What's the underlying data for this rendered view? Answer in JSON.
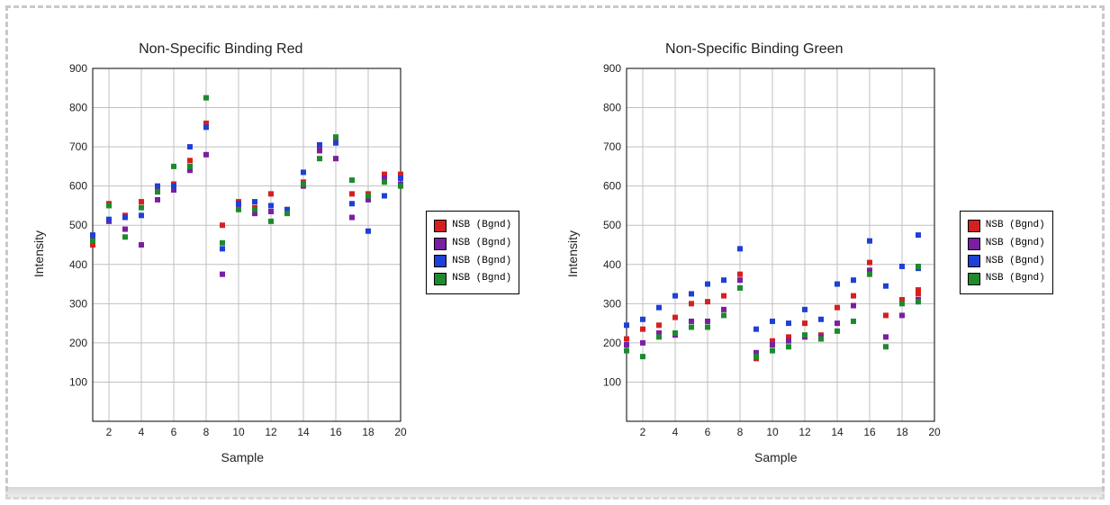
{
  "layout": {
    "background_color": "#ffffff",
    "border_style": "3px dashed #c8c8c8"
  },
  "charts": [
    {
      "id": "chart_red",
      "type": "scatter",
      "title": "Non-Specific Binding Red",
      "title_fontsize": 16,
      "xlabel": "Sample",
      "ylabel": "Intensity",
      "label_fontsize": 14,
      "xlim": [
        1,
        20
      ],
      "ylim": [
        0,
        900
      ],
      "xtick_step": 2,
      "xtick_start": 2,
      "ytick_step": 100,
      "ytick_start": 100,
      "grid_color": "#c0c0c0",
      "axis_color": "#000000",
      "background_color": "#ffffff",
      "marker_size": 6,
      "series": [
        {
          "label": "NSB (Bgnd)",
          "color": "#d62020",
          "points": [
            [
              1,
              450
            ],
            [
              2,
              555
            ],
            [
              3,
              525
            ],
            [
              4,
              560
            ],
            [
              5,
              595
            ],
            [
              6,
              605
            ],
            [
              7,
              665
            ],
            [
              8,
              760
            ],
            [
              9,
              500
            ],
            [
              10,
              560
            ],
            [
              11,
              545
            ],
            [
              12,
              580
            ],
            [
              13,
              540
            ],
            [
              14,
              610
            ],
            [
              15,
              700
            ],
            [
              16,
              720
            ],
            [
              17,
              580
            ],
            [
              18,
              580
            ],
            [
              19,
              630
            ],
            [
              20,
              630
            ]
          ]
        },
        {
          "label": "NSB (Bgnd)",
          "color": "#7a1fa2",
          "points": [
            [
              1,
              470
            ],
            [
              2,
              510
            ],
            [
              3,
              490
            ],
            [
              4,
              450
            ],
            [
              5,
              565
            ],
            [
              6,
              590
            ],
            [
              7,
              640
            ],
            [
              8,
              680
            ],
            [
              9,
              375
            ],
            [
              10,
              545
            ],
            [
              11,
              530
            ],
            [
              12,
              535
            ],
            [
              13,
              535
            ],
            [
              14,
              600
            ],
            [
              15,
              690
            ],
            [
              16,
              670
            ],
            [
              17,
              520
            ],
            [
              18,
              565
            ],
            [
              19,
              620
            ],
            [
              20,
              605
            ]
          ]
        },
        {
          "label": "NSB (Bgnd)",
          "color": "#1e40d6",
          "points": [
            [
              1,
              475
            ],
            [
              2,
              515
            ],
            [
              3,
              520
            ],
            [
              4,
              525
            ],
            [
              5,
              600
            ],
            [
              6,
              600
            ],
            [
              7,
              700
            ],
            [
              8,
              750
            ],
            [
              9,
              440
            ],
            [
              10,
              555
            ],
            [
              11,
              560
            ],
            [
              12,
              550
            ],
            [
              13,
              540
            ],
            [
              14,
              635
            ],
            [
              15,
              705
            ],
            [
              16,
              710
            ],
            [
              17,
              555
            ],
            [
              18,
              485
            ],
            [
              19,
              575
            ],
            [
              20,
              620
            ]
          ]
        },
        {
          "label": "NSB (Bgnd)",
          "color": "#1e8a2d",
          "points": [
            [
              1,
              460
            ],
            [
              2,
              550
            ],
            [
              3,
              470
            ],
            [
              4,
              545
            ],
            [
              5,
              585
            ],
            [
              6,
              650
            ],
            [
              7,
              650
            ],
            [
              8,
              825
            ],
            [
              9,
              455
            ],
            [
              10,
              540
            ],
            [
              11,
              540
            ],
            [
              12,
              510
            ],
            [
              13,
              530
            ],
            [
              14,
              605
            ],
            [
              15,
              670
            ],
            [
              16,
              725
            ],
            [
              17,
              615
            ],
            [
              18,
              575
            ],
            [
              19,
              610
            ],
            [
              20,
              600
            ]
          ]
        }
      ],
      "legend": {
        "position": "right",
        "border_color": "#000000",
        "font_family": "Courier New",
        "font_size": 11
      }
    },
    {
      "id": "chart_green",
      "type": "scatter",
      "title": "Non-Specific Binding Green",
      "title_fontsize": 16,
      "xlabel": "Sample",
      "ylabel": "Intensity",
      "label_fontsize": 14,
      "xlim": [
        1,
        20
      ],
      "ylim": [
        0,
        900
      ],
      "xtick_step": 2,
      "xtick_start": 2,
      "ytick_step": 100,
      "ytick_start": 100,
      "grid_color": "#c0c0c0",
      "axis_color": "#000000",
      "background_color": "#ffffff",
      "marker_size": 6,
      "series": [
        {
          "label": "NSB (Bgnd)",
          "color": "#d62020",
          "points": [
            [
              1,
              210
            ],
            [
              2,
              235
            ],
            [
              3,
              245
            ],
            [
              4,
              265
            ],
            [
              5,
              300
            ],
            [
              6,
              305
            ],
            [
              7,
              320
            ],
            [
              8,
              375
            ],
            [
              9,
              160
            ],
            [
              10,
              205
            ],
            [
              11,
              215
            ],
            [
              12,
              250
            ],
            [
              13,
              220
            ],
            [
              14,
              290
            ],
            [
              15,
              320
            ],
            [
              16,
              405
            ],
            [
              17,
              270
            ],
            [
              18,
              310
            ],
            [
              19,
              335
            ],
            [
              19,
              325
            ]
          ]
        },
        {
          "label": "NSB (Bgnd)",
          "color": "#7a1fa2",
          "points": [
            [
              1,
              195
            ],
            [
              2,
              200
            ],
            [
              3,
              225
            ],
            [
              4,
              220
            ],
            [
              5,
              255
            ],
            [
              6,
              255
            ],
            [
              7,
              285
            ],
            [
              8,
              360
            ],
            [
              9,
              175
            ],
            [
              10,
              195
            ],
            [
              11,
              205
            ],
            [
              12,
              215
            ],
            [
              13,
              215
            ],
            [
              14,
              250
            ],
            [
              15,
              295
            ],
            [
              16,
              385
            ],
            [
              17,
              215
            ],
            [
              18,
              270
            ],
            [
              19,
              310
            ],
            [
              19,
              305
            ]
          ]
        },
        {
          "label": "NSB (Bgnd)",
          "color": "#1e40d6",
          "points": [
            [
              1,
              245
            ],
            [
              2,
              260
            ],
            [
              3,
              290
            ],
            [
              4,
              320
            ],
            [
              5,
              325
            ],
            [
              6,
              350
            ],
            [
              7,
              360
            ],
            [
              8,
              440
            ],
            [
              9,
              235
            ],
            [
              10,
              255
            ],
            [
              11,
              250
            ],
            [
              12,
              285
            ],
            [
              13,
              260
            ],
            [
              14,
              350
            ],
            [
              15,
              360
            ],
            [
              16,
              460
            ],
            [
              17,
              345
            ],
            [
              18,
              395
            ],
            [
              19,
              475
            ],
            [
              19,
              390
            ]
          ]
        },
        {
          "label": "NSB (Bgnd)",
          "color": "#1e8a2d",
          "points": [
            [
              1,
              180
            ],
            [
              2,
              165
            ],
            [
              3,
              215
            ],
            [
              4,
              225
            ],
            [
              5,
              240
            ],
            [
              6,
              240
            ],
            [
              7,
              270
            ],
            [
              8,
              340
            ],
            [
              9,
              165
            ],
            [
              10,
              180
            ],
            [
              11,
              190
            ],
            [
              12,
              220
            ],
            [
              13,
              210
            ],
            [
              14,
              230
            ],
            [
              15,
              255
            ],
            [
              16,
              375
            ],
            [
              17,
              190
            ],
            [
              18,
              300
            ],
            [
              19,
              395
            ],
            [
              19,
              305
            ]
          ]
        }
      ],
      "legend": {
        "position": "right",
        "border_color": "#000000",
        "font_family": "Courier New",
        "font_size": 11
      }
    }
  ]
}
